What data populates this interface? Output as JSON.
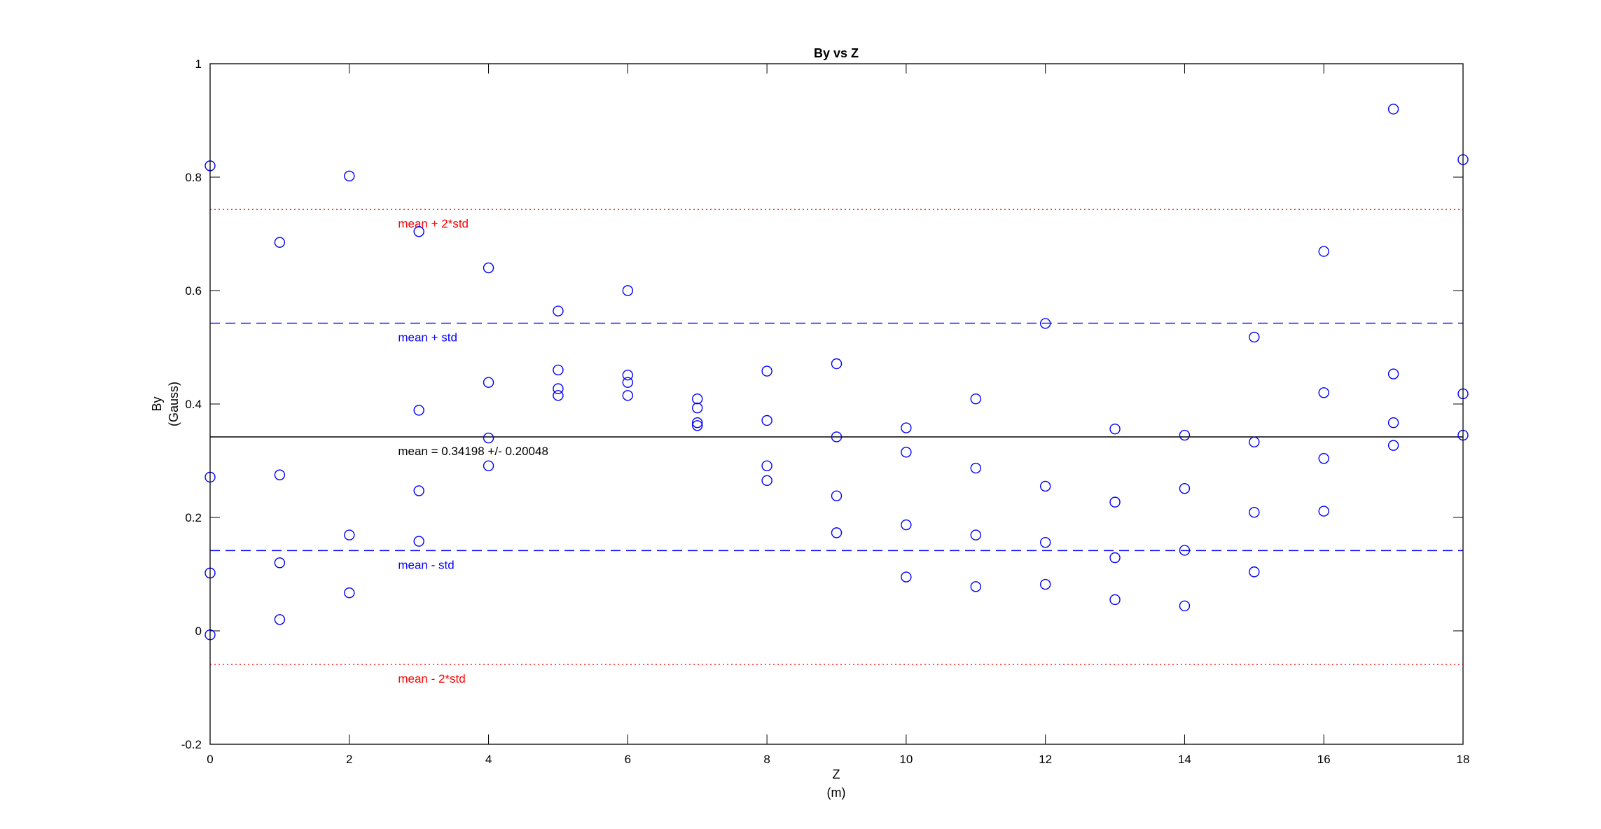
{
  "chart_data": {
    "type": "scatter",
    "title": "By vs Z",
    "xlabel": "Z",
    "xlabel_unit": "(m)",
    "ylabel": "By",
    "ylabel_unit": "(Gauss)",
    "xlim": [
      0,
      18
    ],
    "ylim": [
      -0.2,
      1
    ],
    "xticks": [
      0,
      2,
      4,
      6,
      8,
      10,
      12,
      14,
      16,
      18
    ],
    "yticks": [
      -0.2,
      0,
      0.2,
      0.4,
      0.6,
      0.8,
      1
    ],
    "ytick_labels": [
      "-0.2",
      "0",
      "0.2",
      "0.4",
      "0.6",
      "0.8",
      "1"
    ],
    "grid": false,
    "marker_color": "#0000ff",
    "points": [
      [
        0,
        0.82
      ],
      [
        0,
        0.271
      ],
      [
        0,
        0.102
      ],
      [
        0,
        -0.007
      ],
      [
        1,
        0.685
      ],
      [
        1,
        0.275
      ],
      [
        1,
        0.12
      ],
      [
        1,
        0.02
      ],
      [
        2,
        0.802
      ],
      [
        2,
        0.169
      ],
      [
        2,
        0.067
      ],
      [
        3,
        0.704
      ],
      [
        3,
        0.389
      ],
      [
        3,
        0.247
      ],
      [
        3,
        0.158
      ],
      [
        4,
        0.64
      ],
      [
        4,
        0.438
      ],
      [
        4,
        0.34
      ],
      [
        4,
        0.291
      ],
      [
        5,
        0.564
      ],
      [
        5,
        0.46
      ],
      [
        5,
        0.427
      ],
      [
        5,
        0.415
      ],
      [
        6,
        0.6
      ],
      [
        6,
        0.451
      ],
      [
        6,
        0.438
      ],
      [
        6,
        0.415
      ],
      [
        7,
        0.409
      ],
      [
        7,
        0.393
      ],
      [
        7,
        0.367
      ],
      [
        7,
        0.362
      ],
      [
        8,
        0.458
      ],
      [
        8,
        0.371
      ],
      [
        8,
        0.291
      ],
      [
        8,
        0.265
      ],
      [
        9,
        0.471
      ],
      [
        9,
        0.342
      ],
      [
        9,
        0.238
      ],
      [
        9,
        0.173
      ],
      [
        10,
        0.358
      ],
      [
        10,
        0.315
      ],
      [
        10,
        0.187
      ],
      [
        10,
        0.095
      ],
      [
        11,
        0.409
      ],
      [
        11,
        0.287
      ],
      [
        11,
        0.169
      ],
      [
        11,
        0.078
      ],
      [
        12,
        0.542
      ],
      [
        12,
        0.255
      ],
      [
        12,
        0.156
      ],
      [
        12,
        0.082
      ],
      [
        13,
        0.356
      ],
      [
        13,
        0.227
      ],
      [
        13,
        0.129
      ],
      [
        13,
        0.055
      ],
      [
        14,
        0.345
      ],
      [
        14,
        0.251
      ],
      [
        14,
        0.142
      ],
      [
        14,
        0.044
      ],
      [
        15,
        0.518
      ],
      [
        15,
        0.333
      ],
      [
        15,
        0.209
      ],
      [
        15,
        0.104
      ],
      [
        16,
        0.669
      ],
      [
        16,
        0.42
      ],
      [
        16,
        0.304
      ],
      [
        16,
        0.211
      ],
      [
        17,
        0.92
      ],
      [
        17,
        0.453
      ],
      [
        17,
        0.367
      ],
      [
        17,
        0.327
      ],
      [
        18,
        0.831
      ],
      [
        18,
        0.418
      ],
      [
        18,
        0.345
      ]
    ],
    "reference_lines": [
      {
        "label": "mean + 2*std",
        "y": 0.74294,
        "color": "#ff0000",
        "style": "dotted"
      },
      {
        "label": "mean + std",
        "y": 0.54246,
        "color": "#0000ff",
        "style": "dashed"
      },
      {
        "label": "mean = 0.34198 +/- 0.20048",
        "y": 0.34198,
        "color": "#000000",
        "style": "solid"
      },
      {
        "label": "mean - std",
        "y": 0.1415,
        "color": "#0000ff",
        "style": "dashed"
      },
      {
        "label": "mean - 2*std",
        "y": -0.05898,
        "color": "#ff0000",
        "style": "dotted"
      }
    ],
    "annotation_x": 2.7
  }
}
